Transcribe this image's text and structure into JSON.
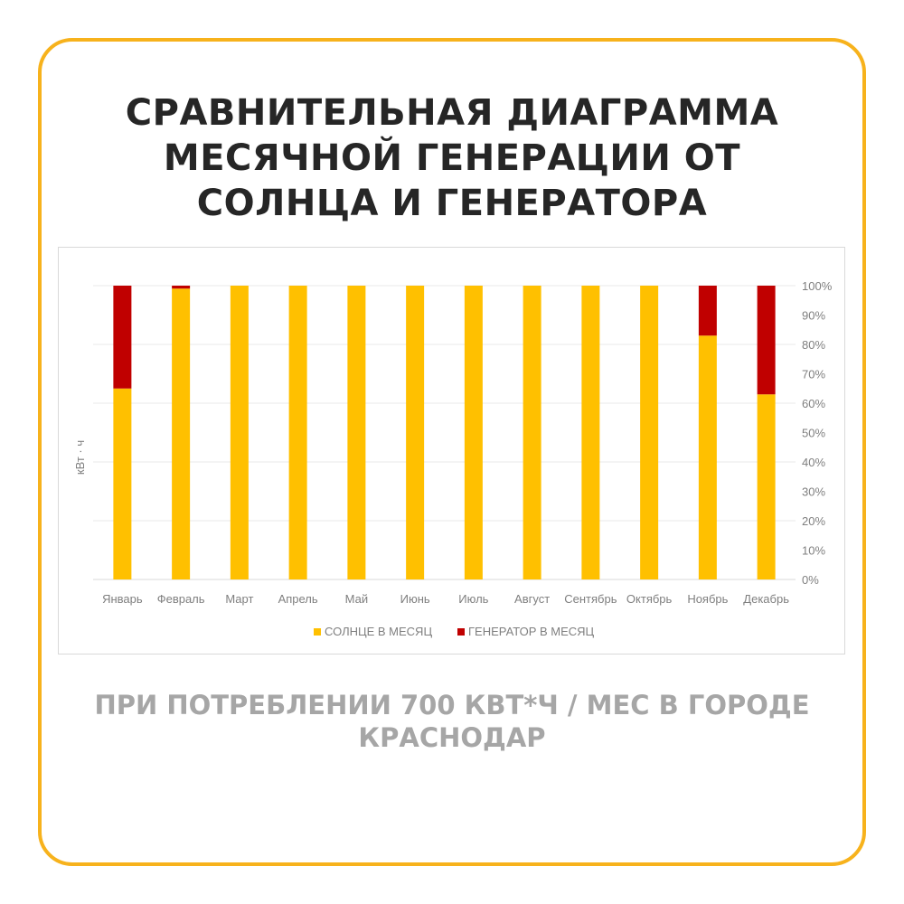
{
  "title_lines": [
    "СРАВНИТЕЛЬНАЯ ДИАГРАММА",
    "МЕСЯЧНОЙ ГЕНЕРАЦИИ ОТ",
    "СОЛНЦА И ГЕНЕРАТОРА"
  ],
  "subtitle_lines": [
    "ПРИ ПОТРЕБЛЕНИИ 700 КВТ*Ч / МЕС В ГОРОДЕ",
    "КРАСНОДАР"
  ],
  "colors": {
    "frame": "#f7b21c",
    "sun": "#ffc000",
    "generator": "#c00000",
    "grid": "#e8e8e8",
    "text_dark": "#262626",
    "text_gray": "#a6a6a6"
  },
  "chart_data": {
    "type": "bar",
    "stacked": true,
    "categories": [
      "Январь",
      "Февраль",
      "Март",
      "Апрель",
      "Май",
      "Июнь",
      "Июль",
      "Август",
      "Сентябрь",
      "Октябрь",
      "Ноябрь",
      "Декабрь"
    ],
    "series": [
      {
        "name": "СОЛНЦЕ В МЕСЯЦ",
        "color": "#ffc000",
        "values": [
          65,
          99,
          100,
          100,
          100,
          100,
          100,
          100,
          100,
          100,
          83,
          63
        ]
      },
      {
        "name": "ГЕНЕРАТОР В МЕСЯЦ",
        "color": "#c00000",
        "values": [
          35,
          1,
          0,
          0,
          0,
          0,
          0,
          0,
          0,
          0,
          17,
          37
        ]
      }
    ],
    "ylabel": "кВт · ч",
    "y_right_ticks": [
      "0%",
      "10%",
      "20%",
      "30%",
      "40%",
      "50%",
      "60%",
      "70%",
      "80%",
      "90%",
      "100%"
    ],
    "ylim": [
      0,
      100
    ],
    "grid": true,
    "legend_position": "bottom"
  }
}
